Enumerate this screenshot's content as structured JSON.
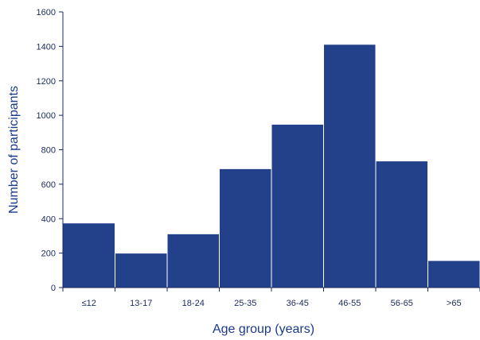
{
  "chart_data": {
    "type": "bar",
    "title": "",
    "xlabel": "Age group (years)",
    "ylabel": "Number of participants",
    "categories": [
      "≤12",
      "13-17",
      "18-24",
      "25-35",
      "36-45",
      "46-55",
      "56-65",
      ">65"
    ],
    "values": [
      375,
      200,
      312,
      690,
      948,
      1412,
      735,
      157
    ],
    "ylim": [
      0,
      1600
    ],
    "yticks": [
      0,
      200,
      400,
      600,
      800,
      1000,
      1200,
      1400,
      1600
    ],
    "grid": false,
    "legend": "none",
    "colors": {
      "bar": "#22418a",
      "bar_edge": "#ffffff",
      "axis": "#1a2a5e"
    }
  }
}
